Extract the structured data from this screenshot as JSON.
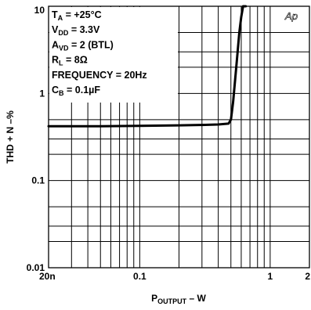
{
  "chart_data": {
    "type": "line",
    "title": "",
    "xlabel": "P",
    "xlabel_sub": "OUTPUT",
    "xlabel_suffix": " – W",
    "ylabel": "THD + N –%",
    "x_scale": "log",
    "y_scale": "log",
    "xlim": [
      0.02,
      2
    ],
    "ylim": [
      0.01,
      10
    ],
    "x_ticks": [
      {
        "value": 0.02,
        "label": "20n"
      },
      {
        "value": 0.1,
        "label": "0.1"
      },
      {
        "value": 1,
        "label": "1"
      },
      {
        "value": 2,
        "label": "2"
      }
    ],
    "y_ticks": [
      {
        "value": 10,
        "label": "10"
      },
      {
        "value": 1,
        "label": "1"
      },
      {
        "value": 0.1,
        "label": "0.1"
      },
      {
        "value": 0.01,
        "label": "0.01"
      }
    ],
    "grid": true,
    "x_gridlines": [
      0.03,
      0.04,
      0.05,
      0.06,
      0.07,
      0.08,
      0.09,
      0.1,
      0.2,
      0.3,
      0.4,
      0.5,
      0.6,
      0.7,
      0.8,
      0.9,
      1,
      2
    ],
    "y_gridlines": [
      0.02,
      0.03,
      0.05,
      0.1,
      0.2,
      0.3,
      0.5,
      1,
      2,
      3,
      5
    ],
    "series": [
      {
        "x": [
          0.02,
          0.05,
          0.1,
          0.2,
          0.3,
          0.4,
          0.48,
          0.5,
          0.52,
          0.55,
          0.58,
          0.6,
          0.62,
          0.65
        ],
        "y": [
          0.42,
          0.42,
          0.425,
          0.43,
          0.435,
          0.44,
          0.45,
          0.5,
          0.8,
          2,
          5,
          7.5,
          10,
          10
        ]
      }
    ],
    "annotations": [
      {
        "main": "T",
        "sub": "A",
        "rest": " = +25°C"
      },
      {
        "main": "V",
        "sub": "DD",
        "rest": " = 3.3V"
      },
      {
        "main": "A",
        "sub": "VD",
        "rest": " = 2 (BTL)"
      },
      {
        "main": "R",
        "sub": "L",
        "rest": " = 8Ω"
      },
      {
        "main": "FREQUENCY = 20Hz",
        "sub": "",
        "rest": ""
      },
      {
        "main": "C",
        "sub": "B",
        "rest": " = 0.1µF"
      }
    ],
    "logo": "Ap"
  }
}
